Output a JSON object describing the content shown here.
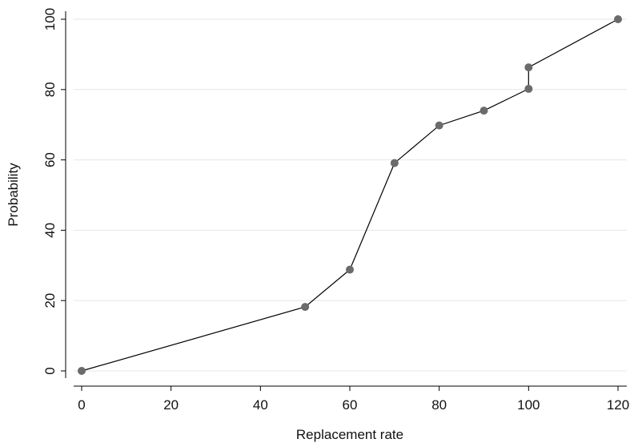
{
  "chart_data": {
    "type": "line",
    "xlabel": "Replacement rate",
    "ylabel": "Probability",
    "xlim": [
      0,
      120
    ],
    "ylim": [
      0,
      100
    ],
    "xticks": [
      0,
      20,
      40,
      60,
      80,
      100,
      120
    ],
    "yticks": [
      0,
      20,
      40,
      60,
      80,
      100
    ],
    "grid": "horizontal",
    "line_color": "#000000",
    "marker_color": "#6b6b6b",
    "series": [
      {
        "x": [
          0,
          50,
          60,
          70,
          80,
          90,
          100,
          100,
          120
        ],
        "y": [
          0,
          18.2,
          28.8,
          59.1,
          69.8,
          74.0,
          80.2,
          86.3,
          100
        ]
      }
    ]
  }
}
